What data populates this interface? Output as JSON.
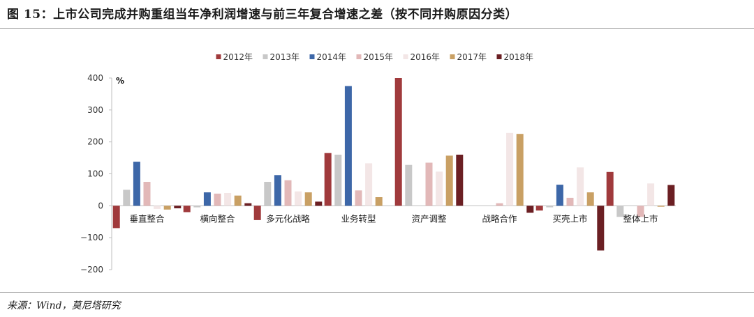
{
  "title": "图 15：上市公司完成并购重组当年净利润增速与前三年复合增速之差（按不同并购原因分类）",
  "source": "来源：Wind，莫尼塔研究",
  "chart_data": {
    "type": "bar",
    "ylabel": "%",
    "ylim": [
      -200,
      400
    ],
    "yticks": [
      -200,
      -100,
      0,
      100,
      200,
      300,
      400
    ],
    "grid": false,
    "legend_position": "top",
    "categories": [
      "垂直整合",
      "横向整合",
      "多元化战略",
      "业务转型",
      "资产调整",
      "战略合作",
      "买壳上市",
      "整体上市"
    ],
    "series": [
      {
        "name": "2012年",
        "color": "#a03a3c",
        "values": [
          -70,
          -20,
          -45,
          165,
          400,
          0,
          -15,
          106
        ]
      },
      {
        "name": "2013年",
        "color": "#c8c8c8",
        "values": [
          50,
          -5,
          75,
          160,
          128,
          0,
          -5,
          -35
        ]
      },
      {
        "name": "2014年",
        "color": "#3d67a8",
        "values": [
          138,
          42,
          96,
          375,
          0,
          0,
          66,
          0
        ]
      },
      {
        "name": "2015年",
        "color": "#e2b8b8",
        "values": [
          75,
          38,
          80,
          48,
          135,
          8,
          25,
          -35
        ]
      },
      {
        "name": "2016年",
        "color": "#f3e6e6",
        "values": [
          -10,
          40,
          45,
          133,
          107,
          228,
          120,
          70
        ]
      },
      {
        "name": "2017年",
        "color": "#c9a064",
        "values": [
          -12,
          32,
          42,
          27,
          157,
          225,
          42,
          -3
        ]
      },
      {
        "name": "2018年",
        "color": "#6b1f23",
        "values": [
          -8,
          8,
          13,
          0,
          160,
          -22,
          -140,
          65
        ]
      }
    ]
  }
}
